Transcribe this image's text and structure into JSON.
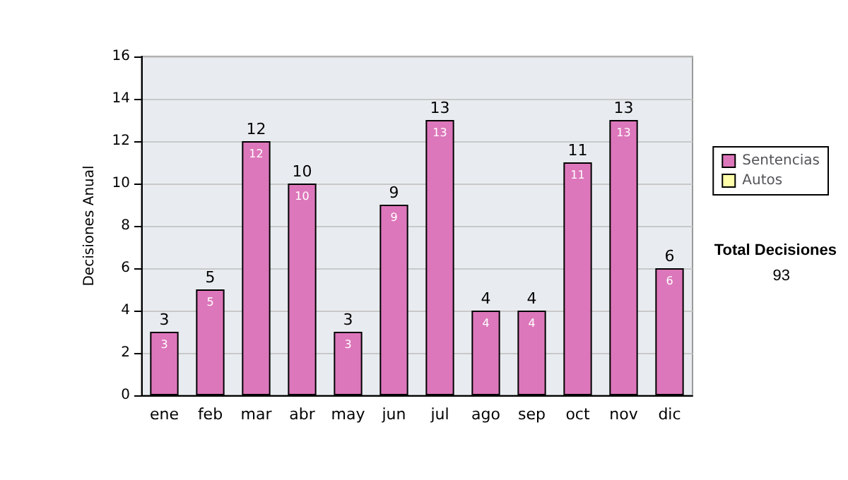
{
  "chart_data": {
    "type": "bar",
    "ylabel": "Decisiones Anual",
    "categories": [
      "ene",
      "feb",
      "mar",
      "abr",
      "may",
      "jun",
      "jul",
      "ago",
      "sep",
      "oct",
      "nov",
      "dic"
    ],
    "series": [
      {
        "name": "Sentencias",
        "color": "#dd77bb",
        "values": [
          3,
          5,
          12,
          10,
          3,
          9,
          13,
          4,
          4,
          11,
          13,
          6
        ]
      },
      {
        "name": "Autos",
        "color": "#ffffaa",
        "values": [
          null,
          null,
          null,
          null,
          null,
          null,
          null,
          null,
          null,
          null,
          null,
          null
        ]
      }
    ],
    "stacked": true,
    "data_labels": true,
    "totals": [
      "3",
      "5",
      "12",
      "10",
      "3",
      "9",
      "13",
      "4",
      "4",
      "11",
      "13",
      "6"
    ],
    "ylim": [
      0,
      16
    ],
    "yticks": [
      0,
      2,
      4,
      6,
      8,
      10,
      12,
      14,
      16
    ],
    "grid": "y",
    "legend": "right",
    "annotations": [
      "Total Decisiones",
      "93"
    ]
  }
}
